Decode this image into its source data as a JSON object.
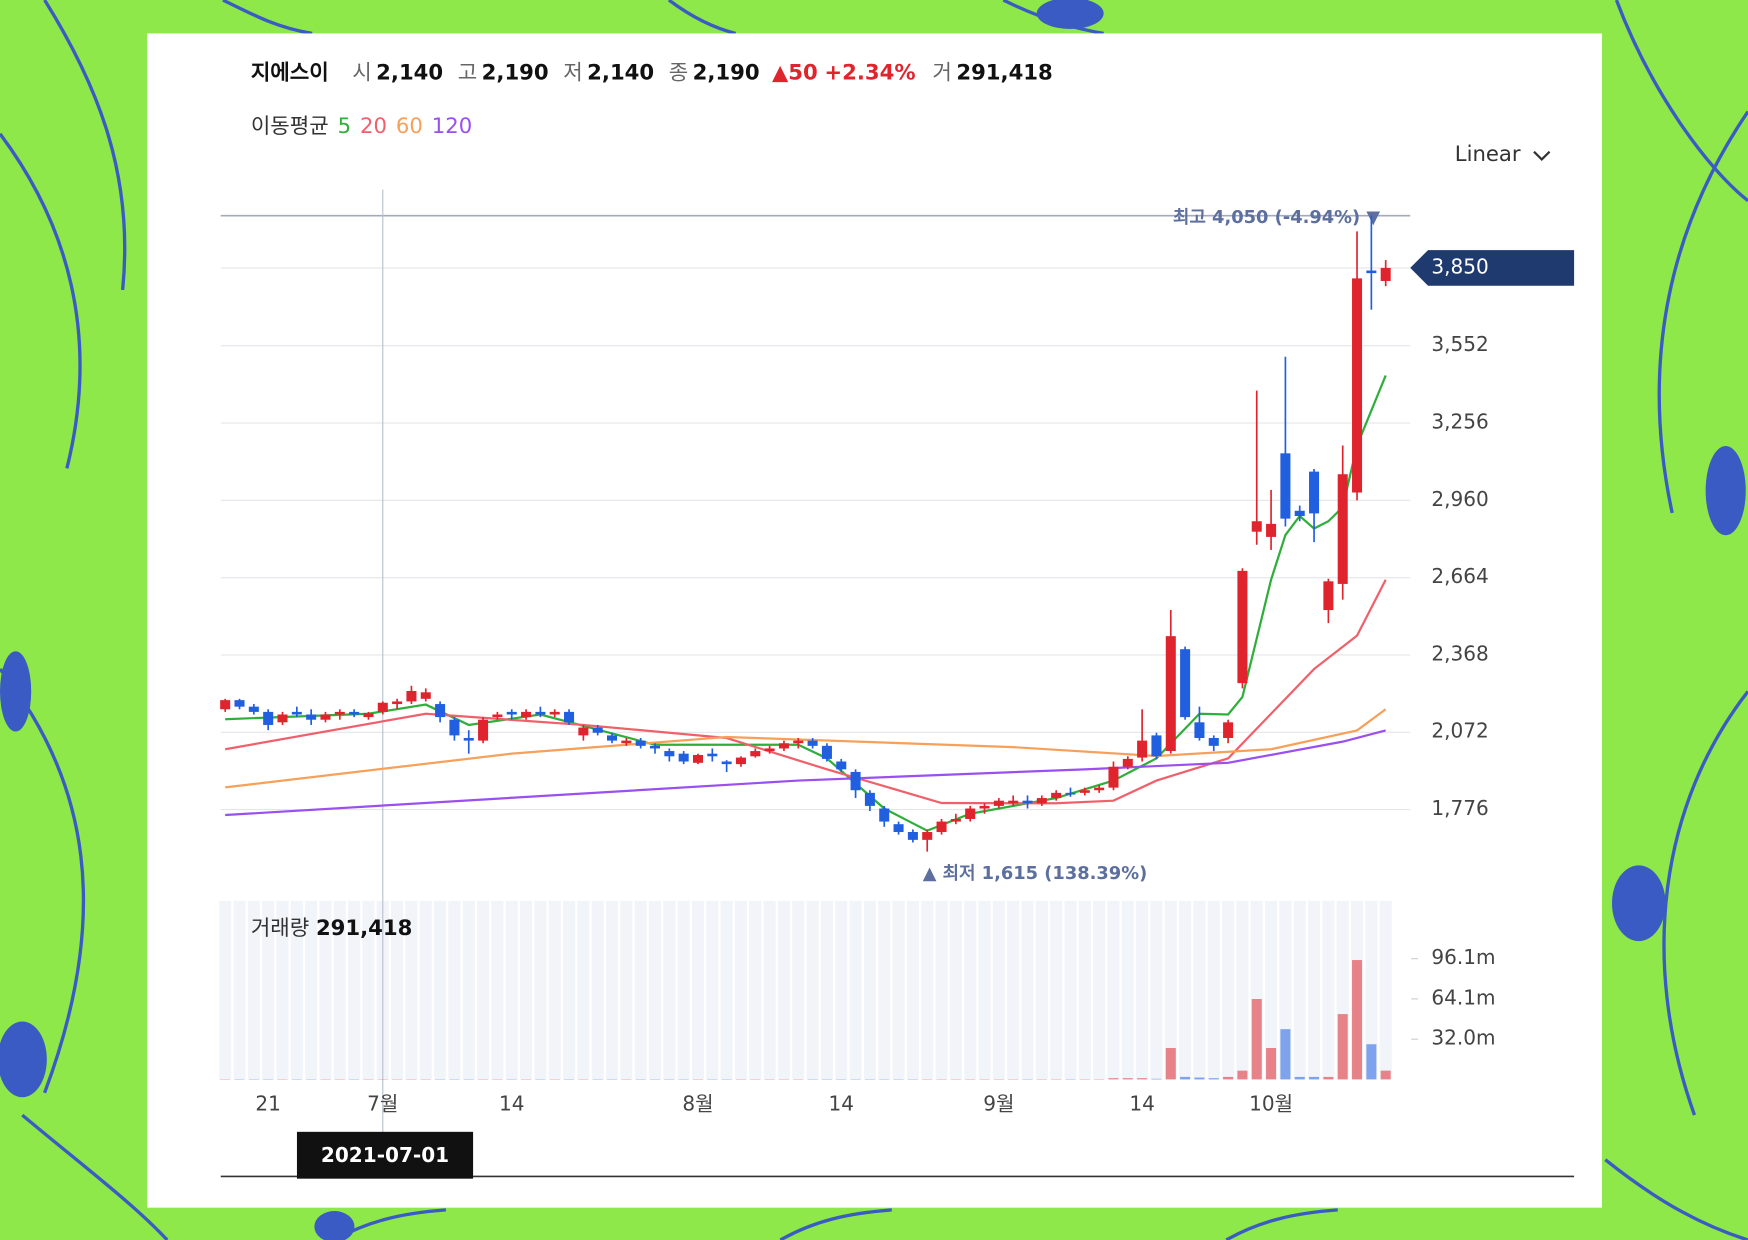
{
  "header": {
    "name": "지에스이",
    "open_label": "시",
    "open": "2,140",
    "high_label": "고",
    "high": "2,190",
    "low_label": "저",
    "low": "2,140",
    "close_label": "종",
    "close": "2,190",
    "change": "▲50",
    "change_pct": "+2.34%",
    "volume_label": "거",
    "volume": "291,418"
  },
  "ma_legend": {
    "title": "이동평균"
  },
  "scale_selector": "Linear",
  "chart_data": {
    "type": "candlestick",
    "categories": [
      null,
      null,
      null,
      "21",
      null,
      null,
      null,
      null,
      null,
      null,
      null,
      "7월",
      null,
      null,
      null,
      null,
      null,
      null,
      null,
      null,
      "14",
      null,
      null,
      null,
      null,
      null,
      null,
      null,
      null,
      null,
      null,
      null,
      null,
      "8월",
      null,
      null,
      null,
      null,
      null,
      null,
      null,
      null,
      null,
      "14",
      null,
      null,
      null,
      null,
      null,
      null,
      null,
      null,
      null,
      null,
      "9월",
      null,
      null,
      null,
      null,
      null,
      null,
      null,
      null,
      null,
      "14",
      null,
      null,
      null,
      null,
      null,
      null,
      null,
      null,
      "10월",
      null,
      null,
      null,
      null,
      null,
      null,
      null,
      null
    ],
    "open": [
      2160,
      2195,
      2170,
      2150,
      2110,
      2150,
      2140,
      2120,
      2140,
      2150,
      2130,
      2150,
      2180,
      2190,
      2200,
      2180,
      2120,
      2050,
      2040,
      2130,
      2150,
      2130,
      2150,
      2140,
      2150,
      2060,
      2090,
      2060,
      2030,
      2040,
      2020,
      2000,
      1990,
      1955,
      1990,
      1960,
      1950,
      1980,
      2000,
      2010,
      2030,
      2040,
      2020,
      1960,
      1920,
      1840,
      1780,
      1720,
      1690,
      1660,
      1690,
      1730,
      1740,
      1780,
      1790,
      1800,
      1810,
      1800,
      1820,
      1840,
      1840,
      1850,
      1860,
      1940,
      1975,
      2060,
      2000,
      2390,
      2110,
      2050,
      2050,
      2260,
      2840,
      2820,
      3140,
      2920,
      3070,
      2540,
      2640,
      2990,
      3840,
      3800
    ],
    "high": [
      2200,
      2200,
      2180,
      2160,
      2150,
      2170,
      2160,
      2150,
      2160,
      2160,
      2150,
      2190,
      2200,
      2250,
      2240,
      2190,
      2130,
      2080,
      2130,
      2150,
      2160,
      2160,
      2170,
      2160,
      2160,
      2100,
      2100,
      2070,
      2050,
      2050,
      2030,
      2010,
      2000,
      1990,
      2010,
      1965,
      1980,
      2010,
      2020,
      2040,
      2050,
      2050,
      2030,
      1970,
      1930,
      1850,
      1790,
      1730,
      1700,
      1700,
      1740,
      1760,
      1790,
      1800,
      1820,
      1830,
      1830,
      1830,
      1850,
      1860,
      1860,
      1870,
      1960,
      1980,
      2160,
      2070,
      2540,
      2400,
      2170,
      2060,
      2120,
      2700,
      3380,
      3000,
      3510,
      2940,
      3080,
      2660,
      3170,
      3990,
      4050,
      3880
    ],
    "low": [
      2150,
      2160,
      2140,
      2080,
      2100,
      2130,
      2100,
      2110,
      2120,
      2130,
      2120,
      2140,
      2160,
      2180,
      2190,
      2110,
      2040,
      1990,
      2030,
      2120,
      2120,
      2120,
      2130,
      2130,
      2100,
      2040,
      2060,
      2030,
      2020,
      2010,
      1990,
      1960,
      1950,
      1950,
      1960,
      1920,
      1940,
      1975,
      1990,
      2000,
      2010,
      2010,
      1960,
      1920,
      1820,
      1770,
      1710,
      1680,
      1650,
      1615,
      1680,
      1720,
      1730,
      1760,
      1780,
      1790,
      1780,
      1790,
      1810,
      1825,
      1830,
      1840,
      1850,
      1930,
      1960,
      1970,
      1990,
      2120,
      2040,
      2000,
      2030,
      2240,
      2790,
      2770,
      2860,
      2880,
      2800,
      2490,
      2580,
      2960,
      3690,
      3780
    ],
    "close": [
      2195,
      2170,
      2150,
      2100,
      2140,
      2140,
      2120,
      2140,
      2150,
      2140,
      2145,
      2185,
      2190,
      2230,
      2225,
      2130,
      2060,
      2040,
      2120,
      2140,
      2140,
      2150,
      2140,
      2150,
      2110,
      2090,
      2070,
      2040,
      2040,
      2020,
      2010,
      1980,
      1960,
      1985,
      1980,
      1950,
      1975,
      2000,
      2010,
      2030,
      2040,
      2020,
      1970,
      1930,
      1850,
      1790,
      1730,
      1690,
      1660,
      1690,
      1730,
      1740,
      1780,
      1790,
      1810,
      1810,
      1800,
      1820,
      1840,
      1835,
      1850,
      1860,
      1940,
      1970,
      2040,
      1980,
      2440,
      2130,
      2050,
      2020,
      2110,
      2690,
      2880,
      2870,
      2890,
      2900,
      2910,
      2650,
      3060,
      3810,
      3830,
      3850
    ],
    "up_color": "#e0242e",
    "down_color": "#1f5fe0",
    "ylim": [
      1460,
      4150
    ],
    "yticks": [
      {
        "value": 1776,
        "label": "1,776"
      },
      {
        "value": 2072,
        "label": "2,072"
      },
      {
        "value": 2368,
        "label": "2,368"
      },
      {
        "value": 2664,
        "label": "2,664"
      },
      {
        "value": 2960,
        "label": "2,960"
      },
      {
        "value": 3256,
        "label": "3,256"
      },
      {
        "value": 3552,
        "label": "3,552"
      }
    ],
    "grid": true,
    "current_price": {
      "value": 3850,
      "label": "3,850",
      "color": "#1f3a6e"
    },
    "high_line": {
      "value": 4050,
      "label": "최고 4,050 (-4.94%) ▼"
    },
    "low_note": "▲ 최저 1,615 (138.39%)",
    "moving_averages": [
      {
        "name": "5",
        "color": "#2fae3b",
        "x": [
          0,
          10,
          14,
          17,
          22,
          30,
          40,
          42,
          46,
          49,
          52,
          58,
          62,
          65,
          68,
          70,
          71,
          73,
          74,
          75,
          76,
          77,
          78,
          79,
          81
        ],
        "values": [
          2122,
          2143,
          2178,
          2100,
          2140,
          2024,
          2024,
          1972,
          1780,
          1695,
          1760,
          1820,
          1887,
          1972,
          2143,
          2140,
          2207,
          2656,
          2827,
          2900,
          2852,
          2880,
          2934,
          3170,
          3438
        ]
      },
      {
        "name": "20",
        "color": "#f0606a",
        "x": [
          0,
          14,
          25,
          35,
          42,
          50,
          58,
          62,
          65,
          70,
          73,
          76,
          79,
          81
        ],
        "values": [
          2007,
          2143,
          2100,
          2050,
          1930,
          1801,
          1800,
          1810,
          1887,
          1972,
          2143,
          2314,
          2442,
          2656
        ]
      },
      {
        "name": "60",
        "color": "#f7a05a",
        "x": [
          0,
          20,
          35,
          55,
          65,
          73,
          79,
          81
        ],
        "values": [
          1861,
          1990,
          2054,
          2015,
          1981,
          2007,
          2079,
          2160
        ]
      },
      {
        "name": "120",
        "color": "#9a4ff0",
        "x": [
          0,
          40,
          60,
          70,
          78,
          81
        ],
        "values": [
          1755,
          1887,
          1930,
          1955,
          2036,
          2079
        ]
      }
    ],
    "volume": {
      "title": "거래량",
      "title_value": "291,418",
      "ylim": [
        0,
        142
      ],
      "yticks": [
        {
          "value": 32.0,
          "label": "32.0m"
        },
        {
          "value": 64.1,
          "label": "64.1m"
        },
        {
          "value": 96.1,
          "label": "96.1m"
        }
      ],
      "values": [
        0.3,
        0.3,
        0.3,
        0.3,
        0.3,
        0.3,
        0.3,
        0.3,
        0.3,
        0.3,
        0.3,
        0.3,
        0.3,
        0.3,
        0.3,
        0.3,
        0.3,
        0.3,
        0.3,
        0.3,
        0.3,
        0.3,
        0.3,
        0.3,
        0.3,
        0.3,
        0.3,
        0.3,
        0.3,
        0.3,
        0.3,
        0.3,
        0.3,
        0.3,
        0.3,
        0.3,
        0.3,
        0.3,
        0.3,
        0.3,
        0.3,
        0.3,
        0.3,
        0.3,
        0.3,
        0.3,
        0.3,
        0.3,
        0.3,
        0.3,
        0.3,
        0.3,
        0.3,
        0.3,
        0.3,
        0.3,
        0.3,
        0.3,
        0.3,
        0.3,
        0.3,
        0.3,
        1,
        1,
        1,
        0.5,
        25,
        2,
        1.5,
        1,
        2,
        7,
        64,
        25,
        40,
        2,
        2,
        2,
        52,
        95,
        28,
        7
      ]
    },
    "crosshair": {
      "index": 11,
      "label": "2021-07-01"
    }
  }
}
